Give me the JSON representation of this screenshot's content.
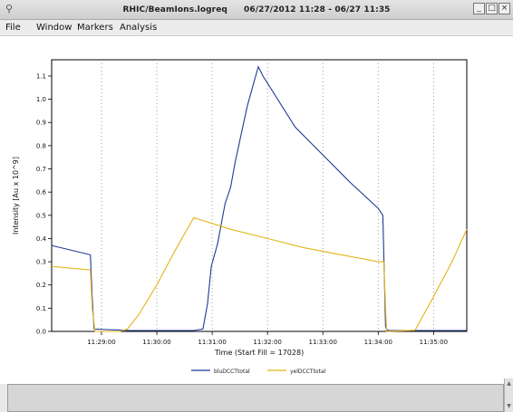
{
  "window": {
    "icon": "chart-app-icon",
    "title_app": "RHIC/BeamIons.logreq",
    "title_range": "06/27/2012 11:28 - 06/27 11:35",
    "buttons": [
      "minimize-icon",
      "maximize-icon",
      "close-icon"
    ]
  },
  "menu": {
    "items": [
      "File",
      "Window",
      "Markers",
      "Analysis"
    ]
  },
  "chart_data": {
    "type": "line",
    "title": "",
    "xlabel": "Time (Start Fill = 17028)",
    "ylabel": "Intensity [Au x 10^9]",
    "x_tick_labels": [
      "11:29:00",
      "11:30:00",
      "11:31:00",
      "11:32:00",
      "11:33:00",
      "11:34:00",
      "11:35:00"
    ],
    "y_tick_labels": [
      "0.0",
      "0.1",
      "0.2",
      "0.3",
      "0.4",
      "0.5",
      "0.6",
      "0.7",
      "0.8",
      "0.9",
      "1.0",
      "1.1"
    ],
    "xlim": [
      "11:28:06",
      "11:35:36"
    ],
    "ylim": [
      0,
      1.17
    ],
    "grid": "vertical-dotted",
    "legend_position": "bottom-center",
    "series": [
      {
        "name": "bluDCCTtotal",
        "color": "#1f3a93",
        "points": [
          [
            "11:28:06",
            0.37
          ],
          [
            "11:28:48",
            0.33
          ],
          [
            "11:28:50",
            0.14
          ],
          [
            "11:28:52",
            0.01
          ],
          [
            "11:29:30",
            0.004
          ],
          [
            "11:30:40",
            0.004
          ],
          [
            "11:30:50",
            0.01
          ],
          [
            "11:30:55",
            0.12
          ],
          [
            "11:30:59",
            0.28
          ],
          [
            "11:31:06",
            0.38
          ],
          [
            "11:31:14",
            0.55
          ],
          [
            "11:31:20",
            0.62
          ],
          [
            "11:31:25",
            0.73
          ],
          [
            "11:31:32",
            0.86
          ],
          [
            "11:31:38",
            0.97
          ],
          [
            "11:31:45",
            1.07
          ],
          [
            "11:31:50",
            1.14
          ],
          [
            "11:31:55",
            1.1
          ],
          [
            "11:32:30",
            0.88
          ],
          [
            "11:33:00",
            0.76
          ],
          [
            "11:33:30",
            0.64
          ],
          [
            "11:34:00",
            0.53
          ],
          [
            "11:34:05",
            0.5
          ],
          [
            "11:34:08",
            0.02
          ],
          [
            "11:34:10",
            0.004
          ],
          [
            "11:35:36",
            0.004
          ]
        ]
      },
      {
        "name": "yelDCCTtotal",
        "color": "#e3b418",
        "points": [
          [
            "11:28:06",
            0.28
          ],
          [
            "11:28:48",
            0.265
          ],
          [
            "11:28:50",
            0.1
          ],
          [
            "11:28:53",
            0.0
          ],
          [
            "11:29:20",
            0.0
          ],
          [
            "11:29:28",
            0.01
          ],
          [
            "11:29:40",
            0.07
          ],
          [
            "11:30:00",
            0.2
          ],
          [
            "11:30:20",
            0.35
          ],
          [
            "11:30:40",
            0.49
          ],
          [
            "11:31:20",
            0.44
          ],
          [
            "11:32:00",
            0.4
          ],
          [
            "11:32:40",
            0.36
          ],
          [
            "11:33:20",
            0.33
          ],
          [
            "11:34:00",
            0.3
          ],
          [
            "11:34:06",
            0.3
          ],
          [
            "11:34:09",
            0.0
          ],
          [
            "11:34:40",
            0.005
          ],
          [
            "11:35:00",
            0.15
          ],
          [
            "11:35:20",
            0.3
          ],
          [
            "11:35:36",
            0.44
          ]
        ]
      }
    ]
  }
}
